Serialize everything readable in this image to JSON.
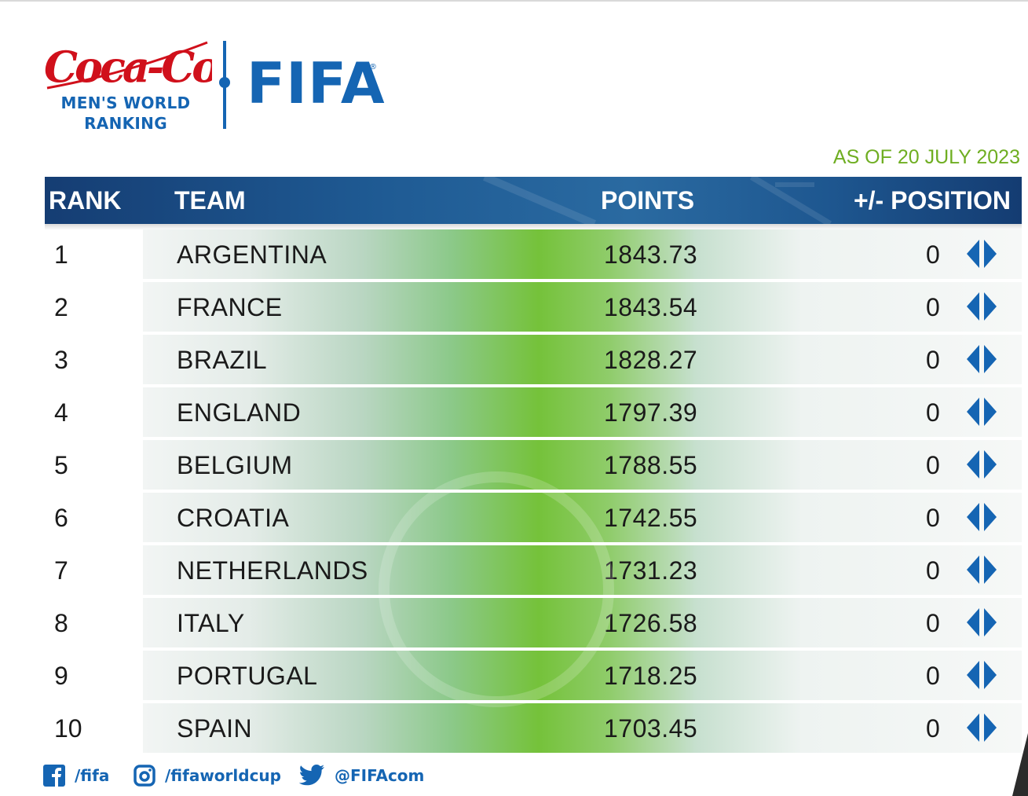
{
  "header": {
    "sponsor_name": "Coca-Cola",
    "ranking_caption_line1": "MEN'S WORLD",
    "ranking_caption_line2": "RANKING",
    "org_logo_text": "FIFA",
    "as_of": "AS OF 20 JULY 2023"
  },
  "colors": {
    "brand_blue": "#1565b3",
    "sponsor_red": "#d0101b",
    "date_green": "#6fae22",
    "header_navy": "#153d73"
  },
  "table": {
    "columns": {
      "rank": "RANK",
      "team": "TEAM",
      "points": "POINTS",
      "position_change": "+/- POSITION"
    },
    "rows": [
      {
        "rank": "1",
        "team": "ARGENTINA",
        "points": "1843.73",
        "change": "0",
        "icon": "no-change-icon"
      },
      {
        "rank": "2",
        "team": "FRANCE",
        "points": "1843.54",
        "change": "0",
        "icon": "no-change-icon"
      },
      {
        "rank": "3",
        "team": "BRAZIL",
        "points": "1828.27",
        "change": "0",
        "icon": "no-change-icon"
      },
      {
        "rank": "4",
        "team": "ENGLAND",
        "points": "1797.39",
        "change": "0",
        "icon": "no-change-icon"
      },
      {
        "rank": "5",
        "team": "BELGIUM",
        "points": "1788.55",
        "change": "0",
        "icon": "no-change-icon"
      },
      {
        "rank": "6",
        "team": "CROATIA",
        "points": "1742.55",
        "change": "0",
        "icon": "no-change-icon"
      },
      {
        "rank": "7",
        "team": "NETHERLANDS",
        "points": "1731.23",
        "change": "0",
        "icon": "no-change-icon"
      },
      {
        "rank": "8",
        "team": "ITALY",
        "points": "1726.58",
        "change": "0",
        "icon": "no-change-icon"
      },
      {
        "rank": "9",
        "team": "PORTUGAL",
        "points": "1718.25",
        "change": "0",
        "icon": "no-change-icon"
      },
      {
        "rank": "10",
        "team": "SPAIN",
        "points": "1703.45",
        "change": "0",
        "icon": "no-change-icon"
      }
    ]
  },
  "footer": {
    "social": [
      {
        "icon": "facebook-icon",
        "handle": "/fifa"
      },
      {
        "icon": "instagram-icon",
        "handle": "/fifaworldcup"
      },
      {
        "icon": "twitter-icon",
        "handle": "@FIFAcom"
      }
    ]
  }
}
